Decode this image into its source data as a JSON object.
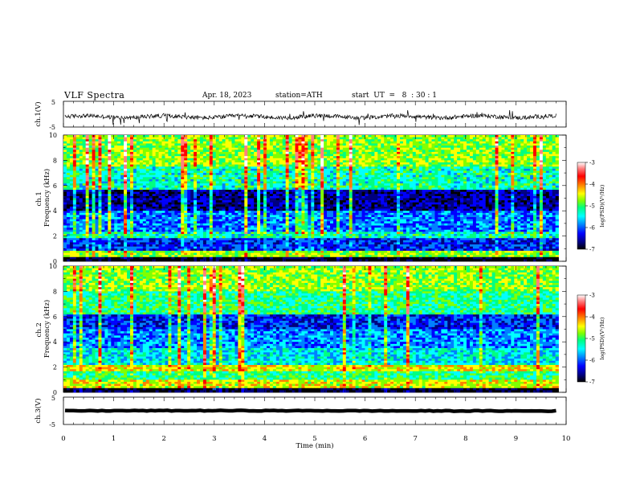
{
  "header": {
    "title": "VLF  Spectra",
    "date": "Apr. 18, 2023",
    "station": "station=ATH",
    "start": "start  UT  =   8  : 30 : 1"
  },
  "colors": {
    "colormap": [
      "#000000",
      "#00007f",
      "#0000ff",
      "#0080ff",
      "#00ffff",
      "#00ff80",
      "#80ff00",
      "#ffff00",
      "#ff8000",
      "#ff0000",
      "#ff8080",
      "#ffffff"
    ]
  },
  "chart_data": [
    {
      "type": "line",
      "panel": "ch1-waveform",
      "ylabel": "ch.1(V)",
      "ylim": [
        -5,
        5
      ],
      "yticks": [
        "5",
        "-5"
      ],
      "xlim": [
        0,
        10
      ],
      "mean": -1.0,
      "amplitude": 1.0
    },
    {
      "type": "heatmap",
      "panel": "ch1-spectrogram",
      "ylabel": "ch.1\nFrequency  (kHz)",
      "ylabel_lines": [
        "ch.1",
        "Frequency  (kHz)"
      ],
      "ylim": [
        0,
        10
      ],
      "yticks": [
        "0",
        "2",
        "4",
        "6",
        "8",
        "10"
      ],
      "xlim": [
        0,
        10
      ],
      "colorbar": {
        "label": "log(PSD)(V²/Hz)",
        "range": [
          -7,
          -3
        ],
        "ticks": [
          "-3",
          "-4",
          "-5",
          "-6",
          "-7"
        ]
      }
    },
    {
      "type": "heatmap",
      "panel": "ch2-spectrogram",
      "ylabel": "ch.2\nFrequency  (kHz)",
      "ylabel_lines": [
        "ch.2",
        "Frequency  (kHz)"
      ],
      "ylim": [
        0,
        10
      ],
      "yticks": [
        "0",
        "2",
        "4",
        "6",
        "8",
        "10"
      ],
      "xlim": [
        0,
        10
      ],
      "colorbar": {
        "label": "log(PSD)(V²/Hz)",
        "range": [
          -7,
          -3
        ],
        "ticks": [
          "-3",
          "-4",
          "-5",
          "-6",
          "-7"
        ]
      }
    },
    {
      "type": "line",
      "panel": "ch3-waveform",
      "ylabel": "ch.3(V)",
      "ylim": [
        -5,
        5
      ],
      "yticks": [
        "5",
        "-5"
      ],
      "xlim": [
        0,
        10
      ],
      "mean": 0.0,
      "amplitude": 0.15
    }
  ],
  "xaxis": {
    "label": "Time  (min)",
    "range": [
      0,
      10
    ],
    "ticks": [
      "0",
      "1",
      "2",
      "3",
      "4",
      "5",
      "6",
      "7",
      "8",
      "9",
      "10"
    ]
  }
}
